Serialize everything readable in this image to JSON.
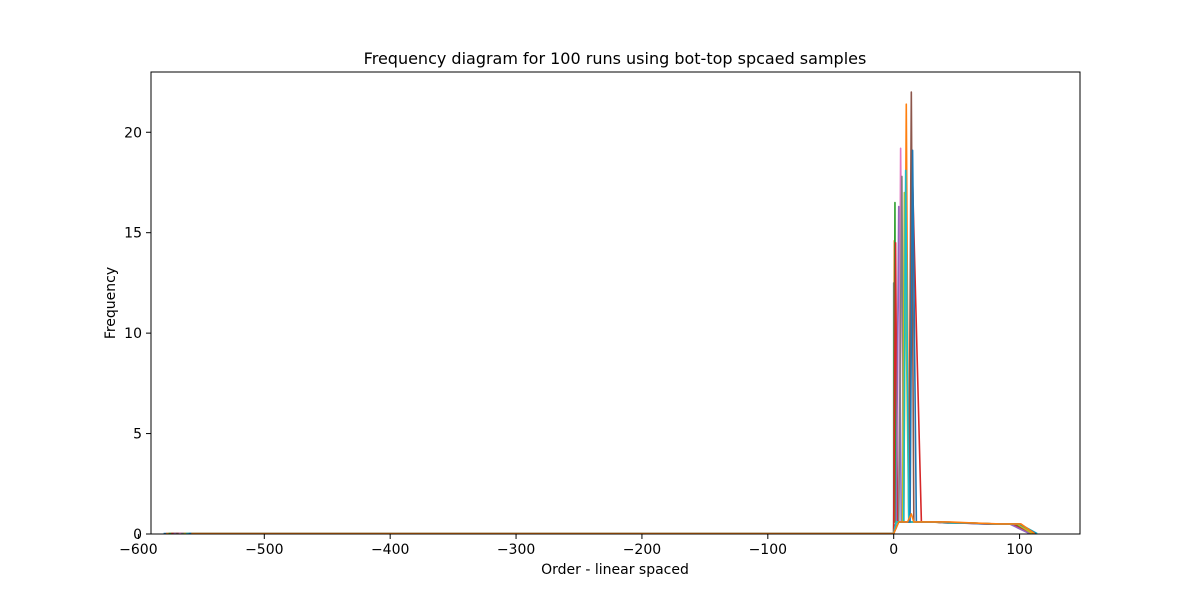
{
  "chart_data": {
    "type": "line",
    "title": "Frequency diagram for 100 runs using bot-top spcaed samples",
    "xlabel": "Order - linear spaced",
    "ylabel": "Frequency",
    "xlim": [
      -590,
      148
    ],
    "ylim": [
      0,
      23
    ],
    "x_ticks": [
      -600,
      -500,
      -400,
      -300,
      -200,
      -100,
      0,
      100
    ],
    "x_tick_labels": [
      "−600",
      "−500",
      "−400",
      "−300",
      "−200",
      "−100",
      "0",
      "100"
    ],
    "y_ticks": [
      0,
      5,
      10,
      15,
      20
    ],
    "y_tick_labels": [
      "0",
      "5",
      "10",
      "15",
      "20"
    ],
    "grid": false,
    "legend": "none",
    "colors": [
      "#1f77b4",
      "#ff7f0e",
      "#2ca02c",
      "#d62728",
      "#9467bd",
      "#8c564b",
      "#e377c2",
      "#7f7f7f",
      "#bcbd22",
      "#17becf"
    ],
    "series": [
      {
        "x": [
          -580,
          0,
          0.0,
          0.3,
          0.6,
          1.0,
          1.4,
          1.8,
          2.2,
          2.6,
          3.0,
          3.4,
          3.8,
          4.2,
          18,
          30,
          48,
          60,
          80,
          100,
          112
        ],
        "y": [
          0.02,
          0.02,
          12.5,
          0.6,
          0.6,
          0.6,
          0.6,
          0.6,
          0.6,
          0.6,
          0.6,
          0.6,
          0.6,
          0.6,
          0.6,
          0.6,
          0.55,
          0.55,
          0.5,
          0.5,
          0.02
        ]
      },
      {
        "x": [
          -578,
          0,
          0.5,
          1,
          2,
          4,
          6,
          8,
          10,
          12,
          18,
          28,
          46,
          58,
          76,
          98,
          111
        ],
        "y": [
          0.02,
          0.02,
          14.6,
          0.6,
          0.6,
          0.6,
          0.6,
          0.6,
          21.4,
          0.6,
          0.6,
          0.6,
          0.55,
          0.55,
          0.5,
          0.5,
          0.02
        ]
      },
      {
        "x": [
          -576,
          0,
          1,
          1.5,
          3,
          5,
          7,
          10,
          14,
          20,
          30,
          44,
          56,
          74,
          96,
          110
        ],
        "y": [
          0.02,
          0.02,
          16.5,
          0.6,
          0.6,
          0.6,
          0.6,
          0.6,
          0.6,
          0.6,
          0.6,
          0.55,
          0.55,
          0.5,
          0.5,
          0.02
        ]
      },
      {
        "x": [
          -574,
          0,
          1.5,
          3,
          5,
          7,
          10,
          12,
          15,
          22,
          32,
          42,
          54,
          72,
          94,
          109
        ],
        "y": [
          0.02,
          0.02,
          14.5,
          0.6,
          0.6,
          0.6,
          0.6,
          0.6,
          17.6,
          0.6,
          0.6,
          0.55,
          0.55,
          0.5,
          0.5,
          0.02
        ]
      },
      {
        "x": [
          -572,
          0,
          2,
          4,
          6,
          9,
          12,
          16,
          24,
          34,
          40,
          52,
          70,
          92,
          108
        ],
        "y": [
          0.02,
          0.02,
          0.6,
          16.3,
          0.6,
          0.6,
          0.6,
          0.6,
          0.6,
          0.6,
          0.55,
          0.55,
          0.5,
          0.5,
          0.02
        ]
      },
      {
        "x": [
          -570,
          0,
          2,
          5,
          8,
          12,
          14,
          16,
          26,
          36,
          44,
          58,
          78,
          100,
          113
        ],
        "y": [
          0.02,
          0.02,
          0.6,
          0.6,
          0.6,
          0.6,
          22.0,
          0.6,
          0.6,
          0.6,
          0.55,
          0.55,
          0.5,
          0.5,
          0.02
        ]
      },
      {
        "x": [
          -568,
          0,
          2,
          4,
          5.5,
          8,
          12,
          16,
          24,
          34,
          46,
          60,
          80,
          101,
          112
        ],
        "y": [
          0.02,
          0.02,
          0.6,
          0.6,
          19.2,
          0.6,
          0.6,
          0.6,
          0.6,
          0.6,
          0.55,
          0.55,
          0.5,
          0.5,
          0.02
        ]
      },
      {
        "x": [
          -566,
          0,
          2,
          4,
          6.5,
          8,
          12,
          16,
          24,
          34,
          46,
          60,
          80,
          99,
          111
        ],
        "y": [
          0.02,
          0.02,
          0.6,
          0.6,
          17.8,
          0.6,
          0.6,
          0.6,
          0.6,
          0.6,
          0.55,
          0.55,
          0.5,
          0.5,
          0.02
        ]
      },
      {
        "x": [
          -564,
          0,
          2,
          4,
          7,
          8.5,
          12,
          16,
          24,
          34,
          46,
          60,
          80,
          98,
          110
        ],
        "y": [
          0.02,
          0.02,
          0.6,
          0.6,
          0.6,
          17.0,
          0.6,
          0.6,
          0.6,
          0.6,
          0.55,
          0.55,
          0.5,
          0.5,
          0.02
        ]
      },
      {
        "x": [
          -562,
          0,
          2,
          4,
          6,
          8,
          9.5,
          12,
          16,
          24,
          34,
          46,
          60,
          80,
          100,
          114
        ],
        "y": [
          0.02,
          0.02,
          0.6,
          0.6,
          0.6,
          0.6,
          18.1,
          0.6,
          0.6,
          0.6,
          0.6,
          0.55,
          0.55,
          0.5,
          0.5,
          0.02
        ]
      },
      {
        "x": [
          -560,
          0,
          4,
          8,
          11,
          13,
          15,
          18,
          26,
          40,
          56,
          76,
          100,
          113
        ],
        "y": [
          0.02,
          0.02,
          0.6,
          0.6,
          0.6,
          0.6,
          19.1,
          0.6,
          0.6,
          0.6,
          0.55,
          0.5,
          0.5,
          0.02
        ]
      },
      {
        "x": [
          -558,
          0,
          4,
          8,
          11,
          14,
          16,
          20,
          30,
          44,
          62,
          84,
          101,
          112
        ],
        "y": [
          0.02,
          0.02,
          0.6,
          0.6,
          0.6,
          1.0,
          0.6,
          0.6,
          0.6,
          0.6,
          0.55,
          0.5,
          0.5,
          0.02
        ]
      }
    ]
  }
}
